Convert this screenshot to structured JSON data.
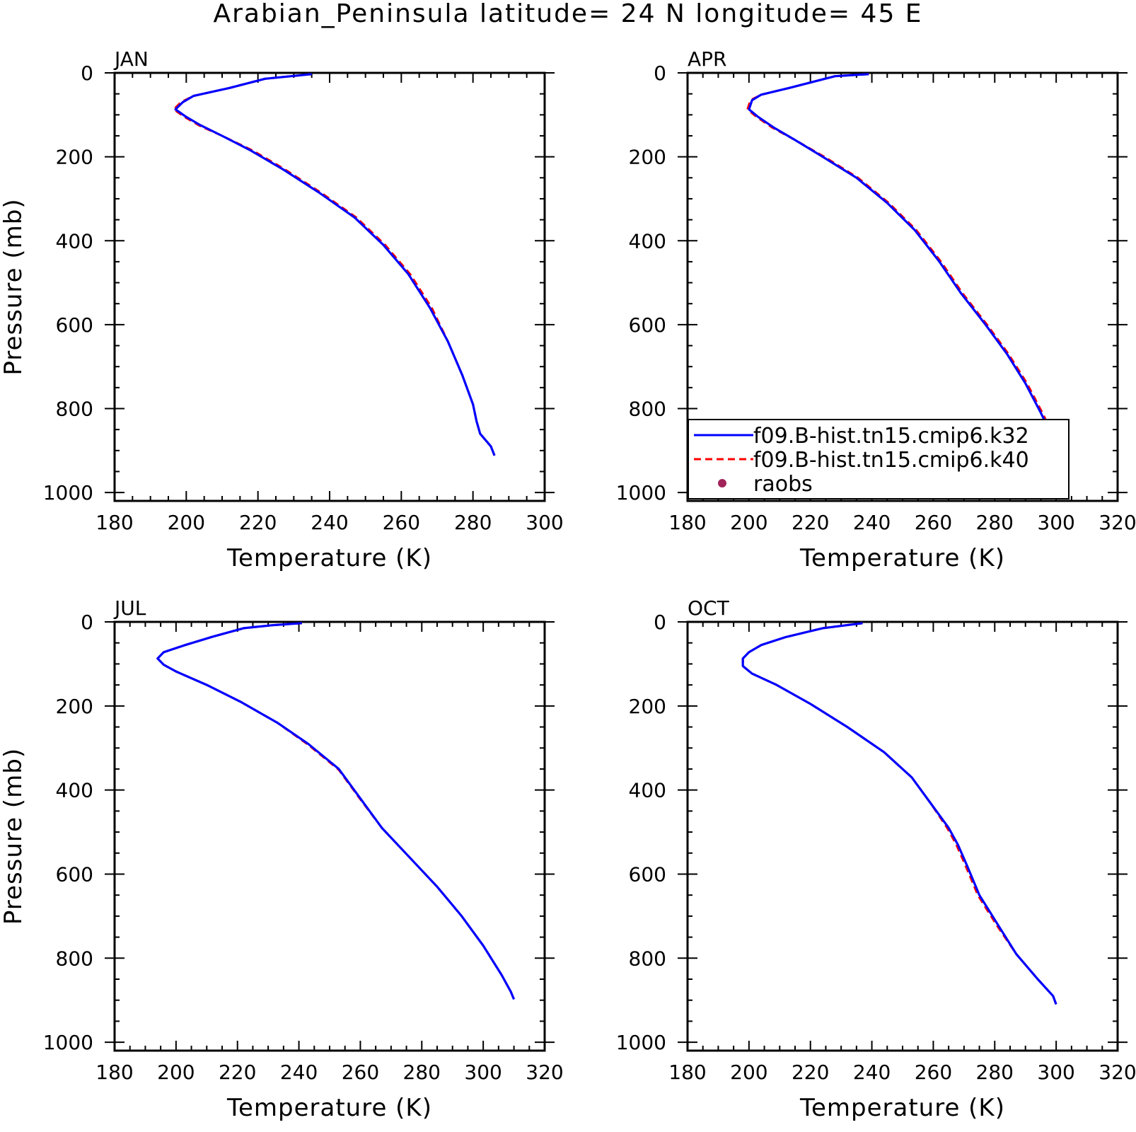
{
  "title": "Arabian_Peninsula   latitude= 24 N longitude= 45 E",
  "legend": [
    {
      "name": "f09.B-hist.tn15.cmip6.k32",
      "color": "#0000ff",
      "style": "solid"
    },
    {
      "name": "f09.B-hist.tn15.cmip6.k40",
      "color": "#ff0000",
      "style": "dashed"
    },
    {
      "name": "raobs",
      "color": "#a0245a",
      "style": "marker"
    }
  ],
  "chart_data": [
    {
      "type": "line",
      "panel": "JAN",
      "xlabel": "Temperature (K)",
      "ylabel": "Pressure (mb)",
      "xlim": [
        180,
        300
      ],
      "ylim": [
        1020,
        0
      ],
      "xticks": [
        180,
        200,
        220,
        240,
        260,
        280,
        300
      ],
      "yticks": [
        0,
        200,
        400,
        600,
        800,
        1000
      ],
      "series": [
        {
          "name": "f09.B-hist.tn15.cmip6.k32",
          "color": "#0000ff",
          "dash": false,
          "points": [
            [
              235,
              3
            ],
            [
              222,
              14
            ],
            [
              212,
              36
            ],
            [
              202,
              55
            ],
            [
              199,
              70
            ],
            [
              197,
              87
            ],
            [
              200,
              105
            ],
            [
              204,
              125
            ],
            [
              210,
              150
            ],
            [
              218,
              185
            ],
            [
              227,
              230
            ],
            [
              237,
              285
            ],
            [
              247,
              345
            ],
            [
              255,
              410
            ],
            [
              262,
              480
            ],
            [
              268,
              560
            ],
            [
              273,
              640
            ],
            [
              277,
              720
            ],
            [
              280,
              790
            ],
            [
              281,
              830
            ],
            [
              282,
              860
            ],
            [
              285,
              890
            ],
            [
              286,
              912
            ]
          ]
        },
        {
          "name": "f09.B-hist.tn15.cmip6.k40",
          "color": "#ff0000",
          "dash": true,
          "points": [
            [
              235,
              3
            ],
            [
              222,
              14
            ],
            [
              212,
              36
            ],
            [
              202,
              55
            ],
            [
              198.5,
              70
            ],
            [
              196.5,
              87
            ],
            [
              199.5,
              105
            ],
            [
              203.5,
              125
            ],
            [
              210,
              150
            ],
            [
              218.5,
              185
            ],
            [
              227.5,
              230
            ],
            [
              237.5,
              285
            ],
            [
              247.5,
              345
            ],
            [
              255.5,
              410
            ],
            [
              262.5,
              480
            ],
            [
              268.5,
              560
            ],
            [
              273,
              640
            ],
            [
              277,
              720
            ],
            [
              280,
              790
            ],
            [
              281,
              830
            ],
            [
              282,
              860
            ],
            [
              285,
              890
            ],
            [
              286,
              912
            ]
          ]
        }
      ]
    },
    {
      "type": "line",
      "panel": "APR",
      "xlabel": "Temperature (K)",
      "ylabel": "",
      "xlim": [
        180,
        320
      ],
      "ylim": [
        1020,
        0
      ],
      "xticks": [
        180,
        200,
        220,
        240,
        260,
        280,
        300,
        320
      ],
      "yticks": [
        0,
        200,
        400,
        600,
        800,
        1000
      ],
      "series": [
        {
          "name": "f09.B-hist.tn15.cmip6.k32",
          "color": "#0000ff",
          "dash": false,
          "points": [
            [
              239,
              3
            ],
            [
              228,
              8
            ],
            [
              213,
              36
            ],
            [
              204,
              52
            ],
            [
              201,
              65
            ],
            [
              200,
              87
            ],
            [
              203,
              105
            ],
            [
              208,
              130
            ],
            [
              215,
              160
            ],
            [
              224,
              200
            ],
            [
              235,
              250
            ],
            [
              245,
              310
            ],
            [
              254,
              375
            ],
            [
              262,
              450
            ],
            [
              269,
              525
            ],
            [
              277,
              600
            ],
            [
              284,
              670
            ],
            [
              290,
              740
            ],
            [
              295,
              810
            ],
            [
              299,
              870
            ],
            [
              301,
              905
            ]
          ]
        },
        {
          "name": "f09.B-hist.tn15.cmip6.k40",
          "color": "#ff0000",
          "dash": true,
          "points": [
            [
              239,
              3
            ],
            [
              228,
              8
            ],
            [
              213,
              36
            ],
            [
              204,
              52
            ],
            [
              200.5,
              65
            ],
            [
              199.5,
              87
            ],
            [
              202.5,
              105
            ],
            [
              207.5,
              130
            ],
            [
              215,
              160
            ],
            [
              224.5,
              200
            ],
            [
              235.5,
              250
            ],
            [
              245.5,
              310
            ],
            [
              254.5,
              375
            ],
            [
              262.5,
              450
            ],
            [
              269.5,
              525
            ],
            [
              277.5,
              600
            ],
            [
              284.5,
              670
            ],
            [
              290.5,
              740
            ],
            [
              295.5,
              810
            ],
            [
              299.5,
              870
            ],
            [
              301,
              905
            ]
          ]
        }
      ]
    },
    {
      "type": "line",
      "panel": "JUL",
      "xlabel": "Temperature (K)",
      "ylabel": "Pressure (mb)",
      "xlim": [
        180,
        320
      ],
      "ylim": [
        1020,
        0
      ],
      "xticks": [
        180,
        200,
        220,
        240,
        260,
        280,
        300,
        320
      ],
      "yticks": [
        0,
        200,
        400,
        600,
        800,
        1000
      ],
      "series": [
        {
          "name": "f09.B-hist.tn15.cmip6.k32",
          "color": "#0000ff",
          "dash": false,
          "points": [
            [
              241,
              3
            ],
            [
              231,
              8
            ],
            [
              222,
              15
            ],
            [
              212,
              35
            ],
            [
              203,
              55
            ],
            [
              196,
              72
            ],
            [
              194,
              87
            ],
            [
              196,
              102
            ],
            [
              200,
              118
            ],
            [
              210,
              150
            ],
            [
              221,
              190
            ],
            [
              233,
              240
            ],
            [
              243,
              290
            ],
            [
              253,
              350
            ],
            [
              260,
              420
            ],
            [
              267,
              490
            ],
            [
              276,
              560
            ],
            [
              285,
              630
            ],
            [
              293,
              700
            ],
            [
              300,
              770
            ],
            [
              306,
              840
            ],
            [
              309,
              880
            ],
            [
              310,
              898
            ]
          ]
        },
        {
          "name": "f09.B-hist.tn15.cmip6.k40",
          "color": "#ff0000",
          "dash": true,
          "points": [
            [
              241,
              3
            ],
            [
              231,
              8
            ],
            [
              222,
              15
            ],
            [
              212,
              35
            ],
            [
              203,
              55
            ],
            [
              196,
              72
            ],
            [
              194,
              87
            ],
            [
              196,
              102
            ],
            [
              200,
              118
            ],
            [
              210,
              150
            ],
            [
              221,
              190
            ],
            [
              233,
              240
            ],
            [
              243,
              292
            ],
            [
              253,
              352
            ],
            [
              260,
              422
            ],
            [
              267,
              490
            ],
            [
              276,
              560
            ],
            [
              285,
              630
            ],
            [
              293,
              700
            ],
            [
              300,
              770
            ],
            [
              306,
              840
            ],
            [
              309,
              880
            ],
            [
              310,
              898
            ]
          ]
        }
      ]
    },
    {
      "type": "line",
      "panel": "OCT",
      "xlabel": "Temperature (K)",
      "ylabel": "",
      "xlim": [
        180,
        320
      ],
      "ylim": [
        1020,
        0
      ],
      "xticks": [
        180,
        200,
        220,
        240,
        260,
        280,
        300,
        320
      ],
      "yticks": [
        0,
        200,
        400,
        600,
        800,
        1000
      ],
      "series": [
        {
          "name": "f09.B-hist.tn15.cmip6.k32",
          "color": "#0000ff",
          "dash": false,
          "points": [
            [
              237,
              3
            ],
            [
              224,
              15
            ],
            [
              212,
              36
            ],
            [
              204,
              55
            ],
            [
              200,
              72
            ],
            [
              198,
              87
            ],
            [
              198,
              105
            ],
            [
              201,
              123
            ],
            [
              209,
              150
            ],
            [
              220,
              195
            ],
            [
              232,
              250
            ],
            [
              244,
              310
            ],
            [
              253,
              370
            ],
            [
              259,
              430
            ],
            [
              265,
              490
            ],
            [
              268,
              530
            ],
            [
              271,
              580
            ],
            [
              275,
              650
            ],
            [
              281,
              720
            ],
            [
              287,
              790
            ],
            [
              294,
              850
            ],
            [
              299,
              890
            ],
            [
              300,
              910
            ]
          ]
        },
        {
          "name": "f09.B-hist.tn15.cmip6.k40",
          "color": "#ff0000",
          "dash": true,
          "points": [
            [
              237,
              3
            ],
            [
              224,
              15
            ],
            [
              212,
              36
            ],
            [
              204,
              55
            ],
            [
              200,
              72
            ],
            [
              198,
              87
            ],
            [
              198,
              105
            ],
            [
              201,
              123
            ],
            [
              209,
              150
            ],
            [
              220,
              195
            ],
            [
              232,
              250
            ],
            [
              244,
              310
            ],
            [
              253,
              370
            ],
            [
              259,
              430
            ],
            [
              264.5,
              490
            ],
            [
              267.5,
              530
            ],
            [
              270.5,
              580
            ],
            [
              274.5,
              650
            ],
            [
              280.5,
              720
            ],
            [
              287,
              790
            ],
            [
              294,
              850
            ],
            [
              299,
              890
            ],
            [
              300,
              910
            ]
          ]
        }
      ]
    }
  ]
}
